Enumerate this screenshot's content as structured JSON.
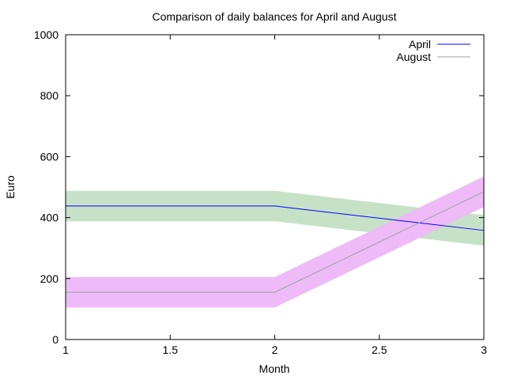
{
  "chart_data": {
    "type": "line",
    "title": "Comparison of daily balances for April and August",
    "xlabel": "Month",
    "ylabel": "Euro",
    "xlim": [
      1,
      3
    ],
    "ylim": [
      0,
      1000
    ],
    "xticks": [
      1,
      1.5,
      2,
      2.5,
      3
    ],
    "xtick_labels": [
      "1",
      "1.5",
      "2",
      "2.5",
      "3"
    ],
    "yticks": [
      0,
      200,
      400,
      600,
      800,
      1000
    ],
    "ytick_labels": [
      "0",
      "200",
      "400",
      "600",
      "800",
      "1000"
    ],
    "grid": false,
    "legend_position": "top-right",
    "series": [
      {
        "name": "April",
        "color": "#0000ff",
        "band_color": "#c6e2c6",
        "x": [
          1,
          2,
          3
        ],
        "y": [
          438,
          438,
          358
        ],
        "lower": [
          388,
          388,
          308
        ],
        "upper": [
          488,
          488,
          408
        ]
      },
      {
        "name": "August",
        "color": "#a0a0a0",
        "band_color": "#eebaf8",
        "x": [
          1,
          2,
          3
        ],
        "y": [
          155,
          155,
          485
        ],
        "lower": [
          105,
          105,
          435
        ],
        "upper": [
          205,
          205,
          535
        ]
      }
    ]
  }
}
